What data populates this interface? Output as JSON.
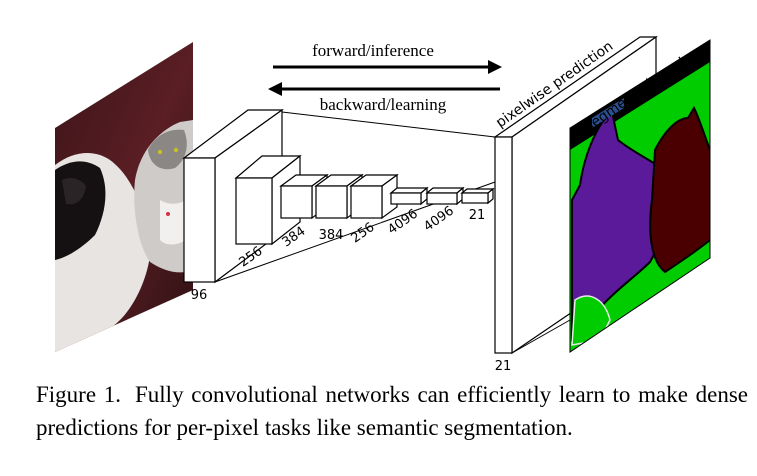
{
  "arrows": {
    "forward": "forward/inference",
    "backward": "backward/learning"
  },
  "labels": {
    "pixelwise_prediction": "pixelwise prediction",
    "segmentation_gt": "segmentation g.t."
  },
  "layers": [
    "96",
    "256",
    "384",
    "384",
    "256",
    "4096",
    "4096",
    "21"
  ],
  "output_layer": "21",
  "caption": {
    "label": "Figure 1.",
    "text": "Fully convolutional networks can efficiently learn to make dense predictions for per-pixel tasks like semantic segmentation."
  },
  "colors": {
    "segmentation_background": "#00cc00",
    "segmentation_dog": "#5a1a9a",
    "segmentation_cat": "#4a0000",
    "segmentation_void": "#000000",
    "label_highlight": "#2a4f90"
  }
}
